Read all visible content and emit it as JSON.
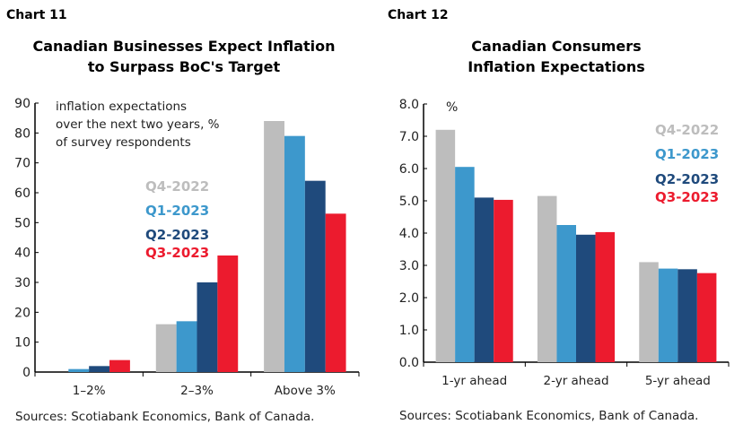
{
  "chart_data": [
    {
      "type": "bar",
      "label": "Chart 11",
      "title": [
        "Canadian Businesses Expect Inflation",
        "to Surpass BoC's Target"
      ],
      "annotation": [
        "inflation expectations",
        "over the next two years, %",
        "of survey respondents"
      ],
      "categories": [
        "1–2%",
        "2–3%",
        "Above 3%"
      ],
      "series": [
        {
          "name": "Q4-2022",
          "color": "#bdbdbd",
          "values": [
            0,
            16,
            84
          ]
        },
        {
          "name": "Q1-2023",
          "color": "#3d98cc",
          "values": [
            1,
            17,
            79
          ]
        },
        {
          "name": "Q2-2023",
          "color": "#1f4a7c",
          "values": [
            2,
            30,
            64
          ]
        },
        {
          "name": "Q3-2023",
          "color": "#ec1b2e",
          "values": [
            4,
            39,
            53
          ]
        }
      ],
      "ylim": [
        0,
        90
      ],
      "yticks": [
        "0",
        "10",
        "20",
        "30",
        "40",
        "50",
        "60",
        "70",
        "80",
        "90"
      ],
      "grid": false,
      "legend": "center",
      "source": "Sources: Scotiabank Economics, Bank of Canada."
    },
    {
      "type": "bar",
      "label": "Chart 12",
      "title": [
        "Canadian Consumers",
        "Inflation Expectations"
      ],
      "annotation": [
        "%"
      ],
      "categories": [
        "1-yr ahead",
        "2-yr ahead",
        "5-yr ahead"
      ],
      "series": [
        {
          "name": "Q4-2022",
          "color": "#bdbdbd",
          "values": [
            7.2,
            5.15,
            3.1
          ]
        },
        {
          "name": "Q1-2023",
          "color": "#3d98cc",
          "values": [
            6.05,
            4.25,
            2.9
          ]
        },
        {
          "name": "Q2-2023",
          "color": "#1f4a7c",
          "values": [
            5.1,
            3.95,
            2.88
          ]
        },
        {
          "name": "Q3-2023",
          "color": "#ec1b2e",
          "values": [
            5.03,
            4.03,
            2.76
          ]
        }
      ],
      "ylim": [
        0,
        8
      ],
      "yticks": [
        "0.0",
        "1.0",
        "2.0",
        "3.0",
        "4.0",
        "5.0",
        "6.0",
        "7.0",
        "8.0"
      ],
      "grid": false,
      "legend": "top-right",
      "source": "Sources: Scotiabank Economics, Bank of Canada."
    }
  ]
}
